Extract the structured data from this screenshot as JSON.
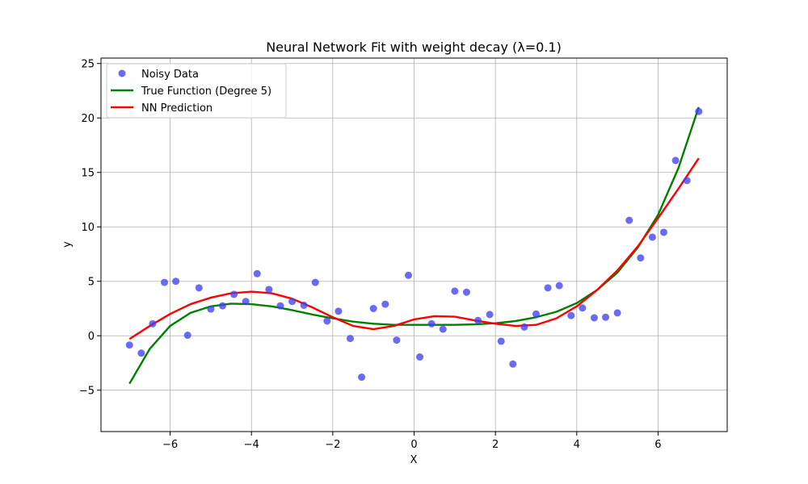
{
  "chart_data": {
    "type": "scatter",
    "title": "Neural Network Fit with weight decay (λ=0.1)",
    "xlabel": "X",
    "ylabel": "y",
    "xlim": [
      -7.7,
      7.7
    ],
    "ylim": [
      -8.8,
      25.5
    ],
    "xticks": [
      -6,
      -4,
      -2,
      0,
      2,
      4,
      6
    ],
    "yticks": [
      -5,
      0,
      5,
      10,
      15,
      20,
      25
    ],
    "xtick_labels": [
      "−6",
      "−4",
      "−2",
      "0",
      "2",
      "4",
      "6"
    ],
    "ytick_labels": [
      "−5",
      "0",
      "5",
      "10",
      "15",
      "20",
      "25"
    ],
    "grid": true,
    "legend_position": "top-left",
    "legend": [
      {
        "label": "Noisy Data",
        "kind": "marker",
        "color": "#4040f0"
      },
      {
        "label": "True Function (Degree 5)",
        "kind": "line",
        "color": "#008000"
      },
      {
        "label": "NN Prediction",
        "kind": "line",
        "color": "#ff0000"
      }
    ],
    "scatter": {
      "name": "Noisy Data",
      "color": "#4040f0",
      "points": [
        [
          -7.0,
          -0.85
        ],
        [
          -6.71,
          -1.6
        ],
        [
          -6.43,
          1.1
        ],
        [
          -6.14,
          4.9
        ],
        [
          -5.86,
          5.0
        ],
        [
          -5.57,
          0.05
        ],
        [
          -5.29,
          4.4
        ],
        [
          -5.0,
          2.45
        ],
        [
          -4.71,
          2.75
        ],
        [
          -4.43,
          3.8
        ],
        [
          -4.14,
          3.15
        ],
        [
          -3.86,
          5.7
        ],
        [
          -3.57,
          4.25
        ],
        [
          -3.29,
          2.75
        ],
        [
          -3.0,
          3.15
        ],
        [
          -2.71,
          2.8
        ],
        [
          -2.43,
          4.9
        ],
        [
          -2.14,
          1.35
        ],
        [
          -1.86,
          2.25
        ],
        [
          -1.57,
          -0.25
        ],
        [
          -1.29,
          -3.8
        ],
        [
          -1.0,
          2.5
        ],
        [
          -0.71,
          2.9
        ],
        [
          -0.43,
          -0.4
        ],
        [
          -0.14,
          5.55
        ],
        [
          0.14,
          -1.95
        ],
        [
          0.43,
          1.1
        ],
        [
          0.71,
          0.6
        ],
        [
          1.0,
          4.1
        ],
        [
          1.29,
          4.0
        ],
        [
          1.57,
          1.4
        ],
        [
          1.86,
          1.95
        ],
        [
          2.14,
          -0.5
        ],
        [
          2.43,
          -2.6
        ],
        [
          2.71,
          0.8
        ],
        [
          3.0,
          2.0
        ],
        [
          3.29,
          4.4
        ],
        [
          3.57,
          4.6
        ],
        [
          3.86,
          1.85
        ],
        [
          4.14,
          2.55
        ],
        [
          4.43,
          1.65
        ],
        [
          4.71,
          1.7
        ],
        [
          5.0,
          2.1
        ],
        [
          5.29,
          10.6
        ],
        [
          5.57,
          7.15
        ],
        [
          5.86,
          9.05
        ],
        [
          6.14,
          9.5
        ],
        [
          6.43,
          16.1
        ],
        [
          6.71,
          14.25
        ],
        [
          7.0,
          20.6
        ]
      ]
    },
    "series": [
      {
        "name": "True Function (Degree 5)",
        "color": "#008000",
        "x": [
          -7.0,
          -6.5,
          -6.0,
          -5.5,
          -5.0,
          -4.5,
          -4.0,
          -3.5,
          -3.0,
          -2.5,
          -2.0,
          -1.5,
          -1.0,
          -0.5,
          0.0,
          0.5,
          1.0,
          1.5,
          2.0,
          2.5,
          3.0,
          3.5,
          4.0,
          4.5,
          5.0,
          5.5,
          6.0,
          6.5,
          7.0
        ],
        "y": [
          -4.4,
          -1.2,
          0.9,
          2.1,
          2.7,
          2.95,
          2.9,
          2.7,
          2.35,
          1.95,
          1.6,
          1.3,
          1.1,
          1.0,
          1.0,
          1.0,
          1.0,
          1.05,
          1.15,
          1.35,
          1.7,
          2.2,
          3.0,
          4.2,
          5.8,
          8.1,
          11.1,
          15.4,
          21.0
        ]
      },
      {
        "name": "NN Prediction",
        "color": "#ff0000",
        "x": [
          -7.0,
          -6.5,
          -6.0,
          -5.5,
          -5.0,
          -4.5,
          -4.0,
          -3.5,
          -3.0,
          -2.5,
          -2.0,
          -1.5,
          -1.0,
          -0.5,
          0.0,
          0.5,
          1.0,
          1.5,
          2.0,
          2.5,
          3.0,
          3.5,
          4.0,
          4.5,
          5.0,
          5.5,
          6.0,
          6.5,
          7.0
        ],
        "y": [
          -0.3,
          0.9,
          2.0,
          2.9,
          3.5,
          3.9,
          4.05,
          3.9,
          3.4,
          2.6,
          1.7,
          0.9,
          0.6,
          0.9,
          1.5,
          1.8,
          1.75,
          1.4,
          1.1,
          0.9,
          1.0,
          1.6,
          2.7,
          4.2,
          6.0,
          8.2,
          10.8,
          13.5,
          16.3
        ]
      }
    ]
  }
}
